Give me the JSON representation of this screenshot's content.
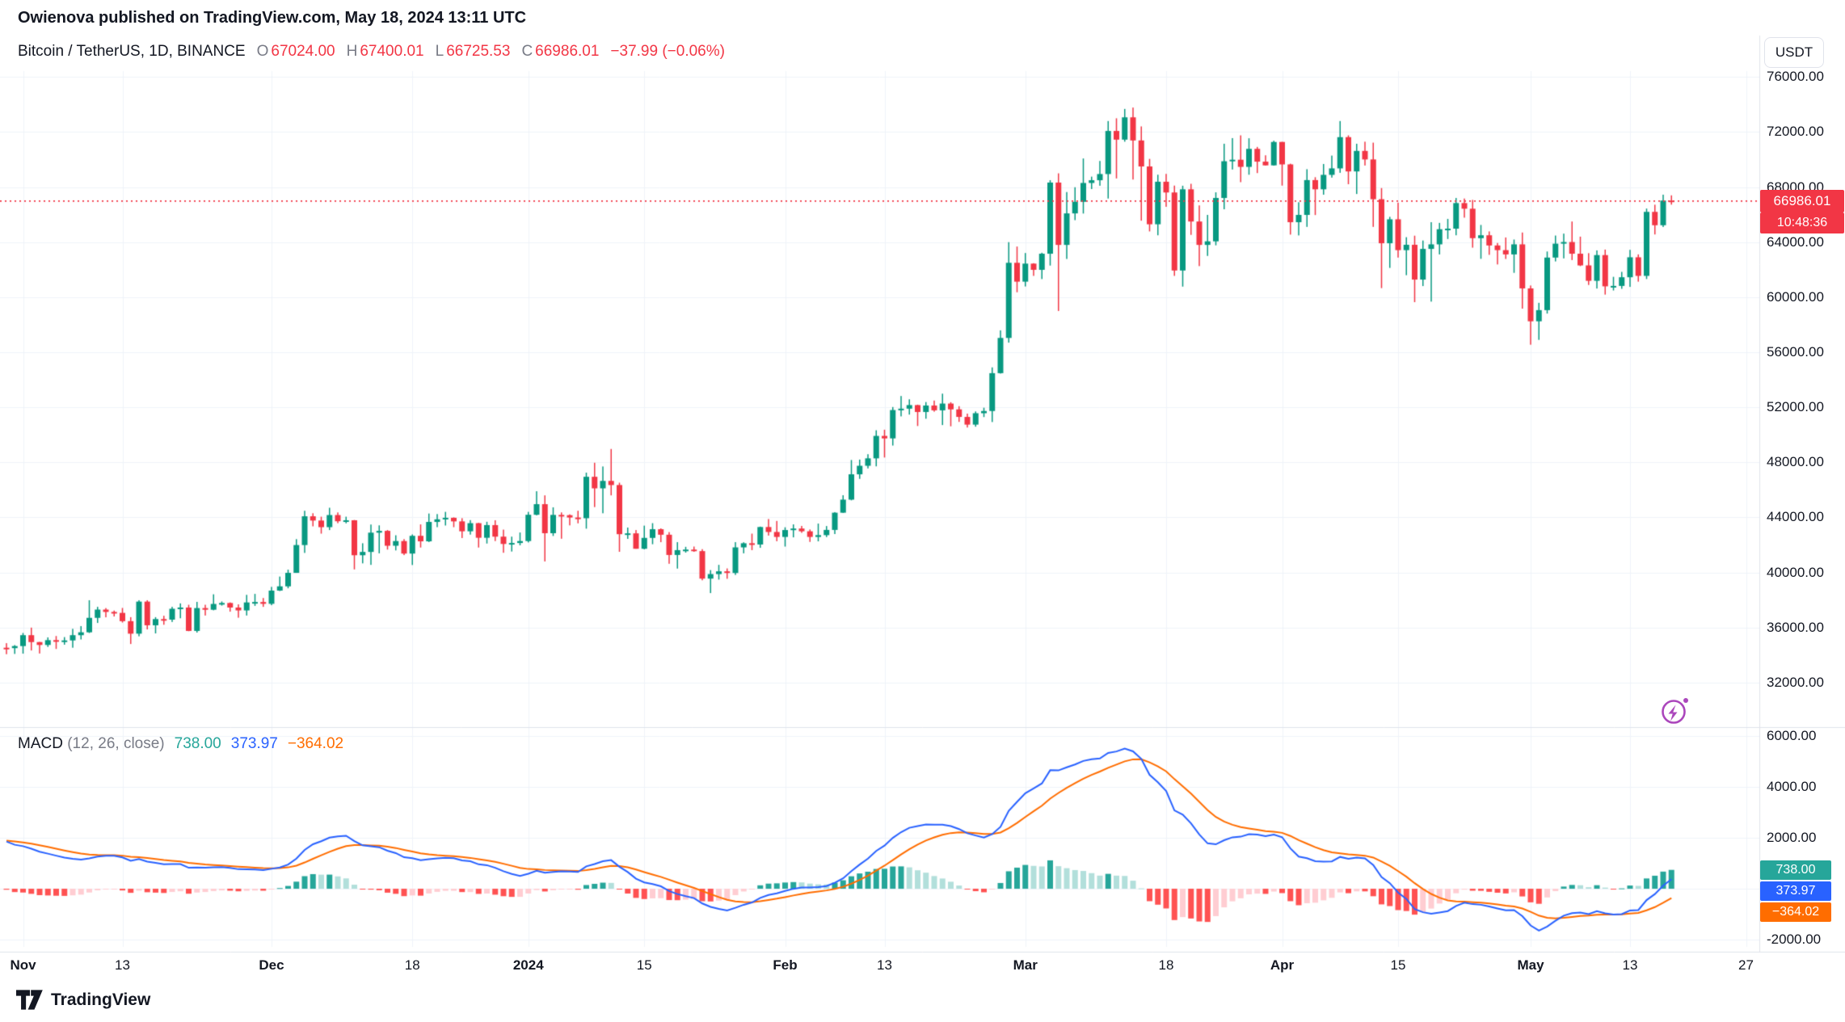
{
  "publish_line": "Owienova published on TradingView.com, May 18, 2024 13:11 UTC",
  "header": {
    "symbol_title": "Bitcoin / TetherUS, 1D, BINANCE",
    "ohlc": {
      "o_label": "O",
      "o": "67024.00",
      "h_label": "H",
      "h": "67400.01",
      "l_label": "L",
      "l": "66725.53",
      "c_label": "C",
      "c": "66986.01",
      "change": "−37.99 (−0.06%)"
    }
  },
  "axis": {
    "currency_button": "USDT",
    "price_label": "66986.01",
    "countdown": "10:48:36"
  },
  "macd_header": {
    "title": "MACD",
    "params": "(12, 26, close)",
    "hist": "738.00",
    "macd": "373.97",
    "signal": "−364.02"
  },
  "footer": {
    "logo_text": "TradingView"
  },
  "colors": {
    "up": "#089981",
    "down": "#F23645",
    "grid": "#F0F3FA",
    "separator": "#E0E3EB",
    "macd_line": "#2962FF",
    "signal_line": "#FF6D00",
    "hist_up_strong": "#26A69A",
    "hist_up_weak": "#B2DFDB",
    "hist_down_strong": "#FF5252",
    "hist_down_weak": "#FFCDD2",
    "price_label_bg": "#F23645",
    "accent_purple": "#AB47BC",
    "text": "#131722",
    "muted": "#787B86"
  },
  "chart_data": {
    "type": "candlestick",
    "symbol": "Bitcoin / TetherUS",
    "interval": "1D",
    "exchange": "BINANCE",
    "legend": "MACD (12, 26, close)",
    "price_pane": {
      "ylim": [
        28760,
        76430
      ],
      "grid": [
        32000,
        76000,
        4000
      ],
      "price_line": 66986.01
    },
    "price_ticks": [
      76000,
      72000,
      68000,
      64000,
      60000,
      56000,
      52000,
      48000,
      44000,
      40000,
      36000,
      32000
    ],
    "macd_pane": {
      "ylim": [
        -2283,
        6252
      ],
      "grid": [
        -2000,
        6000,
        2000
      ],
      "params": {
        "fast": 12,
        "slow": 26,
        "signal": 9
      },
      "last": {
        "hist": 738.0,
        "macd": 373.97,
        "signal": -364.02
      }
    },
    "macd_ticks": [
      6000,
      4000,
      2000,
      -2000
    ],
    "time_ticks": [
      {
        "i": 2,
        "label": "Nov",
        "major": true
      },
      {
        "i": 14,
        "label": "13",
        "major": false
      },
      {
        "i": 32,
        "label": "Dec",
        "major": true
      },
      {
        "i": 49,
        "label": "18",
        "major": false
      },
      {
        "i": 63,
        "label": "2024",
        "major": true
      },
      {
        "i": 77,
        "label": "15",
        "major": false
      },
      {
        "i": 94,
        "label": "Feb",
        "major": true
      },
      {
        "i": 106,
        "label": "13",
        "major": false
      },
      {
        "i": 123,
        "label": "Mar",
        "major": true
      },
      {
        "i": 140,
        "label": "18",
        "major": false
      },
      {
        "i": 154,
        "label": "Apr",
        "major": true
      },
      {
        "i": 168,
        "label": "15",
        "major": false
      },
      {
        "i": 184,
        "label": "May",
        "major": true
      },
      {
        "i": 196,
        "label": "13",
        "major": false
      },
      {
        "i": 210,
        "label": "27",
        "major": false
      }
    ],
    "ohlc": [
      [
        34530,
        34860,
        34060,
        34500
      ],
      [
        34500,
        34720,
        34080,
        34650
      ],
      [
        34650,
        35600,
        34100,
        35440
      ],
      [
        35440,
        35990,
        34330,
        34940
      ],
      [
        34940,
        34950,
        34110,
        34730
      ],
      [
        34730,
        35280,
        34590,
        35080
      ],
      [
        35080,
        35380,
        34440,
        35050
      ],
      [
        35050,
        35300,
        34750,
        35060
      ],
      [
        35060,
        35900,
        34530,
        35440
      ],
      [
        35440,
        36100,
        35130,
        35650
      ],
      [
        35650,
        37980,
        35600,
        36700
      ],
      [
        36700,
        37500,
        36330,
        37300
      ],
      [
        37300,
        37410,
        36740,
        37130
      ],
      [
        37130,
        37230,
        36800,
        37060
      ],
      [
        37060,
        37420,
        36360,
        36460
      ],
      [
        36460,
        36750,
        34800,
        35550
      ],
      [
        35550,
        37980,
        35360,
        37880
      ],
      [
        37880,
        37980,
        35860,
        36160
      ],
      [
        36160,
        36750,
        35570,
        36610
      ],
      [
        36610,
        36850,
        36200,
        36570
      ],
      [
        36570,
        37500,
        36400,
        37360
      ],
      [
        37360,
        37750,
        36670,
        37450
      ],
      [
        37450,
        37650,
        35730,
        35750
      ],
      [
        35750,
        37860,
        35630,
        37410
      ],
      [
        37410,
        37650,
        36870,
        37290
      ],
      [
        37290,
        38410,
        37250,
        37710
      ],
      [
        37710,
        37890,
        37590,
        37780
      ],
      [
        37780,
        37820,
        37150,
        37450
      ],
      [
        37450,
        37680,
        36710,
        37240
      ],
      [
        37240,
        38370,
        36870,
        37820
      ],
      [
        37820,
        38440,
        37570,
        37850
      ],
      [
        37850,
        38140,
        37500,
        37720
      ],
      [
        37720,
        38950,
        37620,
        38680
      ],
      [
        38680,
        39700,
        38650,
        38990
      ],
      [
        38990,
        40200,
        38850,
        39970
      ],
      [
        39970,
        42420,
        39970,
        41990
      ],
      [
        41990,
        44480,
        41420,
        44080
      ],
      [
        44080,
        44300,
        43350,
        43770
      ],
      [
        43770,
        44050,
        42820,
        43290
      ],
      [
        43290,
        44700,
        43080,
        44170
      ],
      [
        44170,
        44360,
        43580,
        43720
      ],
      [
        43720,
        44050,
        43570,
        43790
      ],
      [
        43790,
        43810,
        40220,
        41250
      ],
      [
        41250,
        42120,
        40660,
        41490
      ],
      [
        41490,
        43480,
        40550,
        42890
      ],
      [
        42890,
        43420,
        41390,
        43020
      ],
      [
        43020,
        43080,
        41660,
        41940
      ],
      [
        41940,
        42700,
        41600,
        42280
      ],
      [
        42280,
        42420,
        41260,
        41370
      ],
      [
        41370,
        42760,
        40540,
        42660
      ],
      [
        42660,
        43490,
        41810,
        42260
      ],
      [
        42260,
        44280,
        42210,
        43670
      ],
      [
        43670,
        44240,
        43290,
        43860
      ],
      [
        43860,
        44400,
        43410,
        43970
      ],
      [
        43970,
        44000,
        43290,
        43710
      ],
      [
        43710,
        43940,
        42500,
        42990
      ],
      [
        42990,
        43800,
        42750,
        43580
      ],
      [
        43580,
        43600,
        41810,
        42520
      ],
      [
        42520,
        43680,
        42100,
        43440
      ],
      [
        43440,
        43790,
        42280,
        42600
      ],
      [
        42600,
        43110,
        41430,
        42070
      ],
      [
        42070,
        42600,
        41520,
        42140
      ],
      [
        42140,
        42900,
        41970,
        42280
      ],
      [
        42280,
        44400,
        42180,
        44190
      ],
      [
        44190,
        45900,
        44150,
        44960
      ],
      [
        44960,
        45600,
        40800,
        42850
      ],
      [
        42850,
        44730,
        42650,
        44180
      ],
      [
        44180,
        44360,
        42450,
        44160
      ],
      [
        44160,
        44220,
        43420,
        43990
      ],
      [
        43990,
        44480,
        43570,
        43940
      ],
      [
        43940,
        47250,
        43180,
        46950
      ],
      [
        46950,
        47970,
        44750,
        46110
      ],
      [
        46110,
        47700,
        44300,
        46650
      ],
      [
        46650,
        48970,
        45600,
        46350
      ],
      [
        46350,
        46520,
        41500,
        42780
      ],
      [
        42780,
        43260,
        42440,
        42840
      ],
      [
        42840,
        43080,
        41720,
        41720
      ],
      [
        41720,
        43400,
        41680,
        42510
      ],
      [
        42510,
        43580,
        42050,
        43140
      ],
      [
        43140,
        43200,
        42200,
        42740
      ],
      [
        42740,
        42930,
        40630,
        41270
      ],
      [
        41270,
        42200,
        40280,
        41620
      ],
      [
        41620,
        41860,
        41440,
        41660
      ],
      [
        41660,
        41880,
        41500,
        41550
      ],
      [
        41550,
        41690,
        39430,
        39550
      ],
      [
        39550,
        40170,
        38500,
        39880
      ],
      [
        39880,
        40550,
        39480,
        40080
      ],
      [
        40080,
        40290,
        39540,
        39960
      ],
      [
        39960,
        42200,
        39820,
        41820
      ],
      [
        41820,
        42190,
        41390,
        42120
      ],
      [
        42120,
        42820,
        41620,
        42030
      ],
      [
        42030,
        43330,
        41790,
        43300
      ],
      [
        43300,
        43880,
        42680,
        42940
      ],
      [
        42940,
        43740,
        42270,
        42580
      ],
      [
        42580,
        43280,
        41880,
        43080
      ],
      [
        43080,
        43490,
        42550,
        43190
      ],
      [
        43190,
        43380,
        42880,
        42990
      ],
      [
        42990,
        43120,
        42220,
        42580
      ],
      [
        42580,
        43550,
        42260,
        42710
      ],
      [
        42710,
        43370,
        42570,
        43090
      ],
      [
        43090,
        44380,
        42790,
        44340
      ],
      [
        44340,
        45610,
        44330,
        45290
      ],
      [
        45290,
        48170,
        45240,
        47130
      ],
      [
        47130,
        48200,
        46800,
        47750
      ],
      [
        47750,
        48590,
        47560,
        48290
      ],
      [
        48290,
        50330,
        47710,
        49920
      ],
      [
        49920,
        50370,
        48350,
        49740
      ],
      [
        49740,
        52020,
        49220,
        51800
      ],
      [
        51800,
        52820,
        51340,
        51900
      ],
      [
        51900,
        52580,
        51470,
        52160
      ],
      [
        52160,
        52190,
        50640,
        51660
      ],
      [
        51660,
        52380,
        51170,
        52130
      ],
      [
        52130,
        52490,
        51680,
        51780
      ],
      [
        51780,
        52990,
        50710,
        52270
      ],
      [
        52270,
        52370,
        50620,
        51850
      ],
      [
        51850,
        52080,
        50940,
        51300
      ],
      [
        51300,
        51540,
        50530,
        50740
      ],
      [
        50740,
        51700,
        50590,
        51570
      ],
      [
        51570,
        51970,
        51290,
        51730
      ],
      [
        51730,
        54900,
        50930,
        54480
      ],
      [
        54480,
        57590,
        54450,
        57040
      ],
      [
        57040,
        64000,
        56700,
        62500
      ],
      [
        62500,
        63680,
        60360,
        61130
      ],
      [
        61130,
        63210,
        60780,
        62440
      ],
      [
        62440,
        62470,
        61550,
        61990
      ],
      [
        61990,
        63230,
        61320,
        63160
      ],
      [
        63160,
        68500,
        62300,
        68330
      ],
      [
        68330,
        69000,
        59000,
        63800
      ],
      [
        63800,
        67640,
        62780,
        66090
      ],
      [
        66090,
        67990,
        65600,
        66930
      ],
      [
        66930,
        70080,
        66080,
        68300
      ],
      [
        68300,
        68760,
        67860,
        68500
      ],
      [
        68500,
        69900,
        68100,
        68950
      ],
      [
        68950,
        72800,
        67170,
        72080
      ],
      [
        72080,
        73000,
        68630,
        71450
      ],
      [
        71450,
        73680,
        71300,
        73070
      ],
      [
        73070,
        73780,
        68550,
        71390
      ],
      [
        71390,
        72410,
        65560,
        69500
      ],
      [
        69500,
        70050,
        64780,
        65300
      ],
      [
        65300,
        68900,
        64500,
        68390
      ],
      [
        68390,
        68960,
        66570,
        67610
      ],
      [
        67610,
        68110,
        61550,
        61940
      ],
      [
        61940,
        68100,
        60770,
        67840
      ],
      [
        67840,
        68240,
        64530,
        65500
      ],
      [
        65500,
        66670,
        62260,
        63800
      ],
      [
        63800,
        65980,
        63000,
        64060
      ],
      [
        64060,
        67620,
        63770,
        67210
      ],
      [
        67210,
        71150,
        66390,
        69880
      ],
      [
        69880,
        71560,
        69280,
        69990
      ],
      [
        69990,
        71760,
        68360,
        69470
      ],
      [
        69470,
        71550,
        68900,
        70780
      ],
      [
        70780,
        70920,
        69020,
        69850
      ],
      [
        69850,
        70310,
        69570,
        69580
      ],
      [
        69580,
        71370,
        69560,
        71280
      ],
      [
        71280,
        71290,
        68110,
        69650
      ],
      [
        69650,
        69700,
        64550,
        65450
      ],
      [
        65450,
        66900,
        64490,
        65980
      ],
      [
        65980,
        69300,
        65110,
        68510
      ],
      [
        68510,
        68720,
        65970,
        67840
      ],
      [
        67840,
        69680,
        67450,
        68890
      ],
      [
        68890,
        70290,
        68690,
        69360
      ],
      [
        69360,
        72800,
        69040,
        71630
      ],
      [
        71630,
        71760,
        68210,
        69140
      ],
      [
        69140,
        71150,
        67500,
        70630
      ],
      [
        70630,
        71300,
        69570,
        70010
      ],
      [
        70010,
        71230,
        65110,
        67120
      ],
      [
        67120,
        67930,
        60660,
        63920
      ],
      [
        63920,
        65840,
        62130,
        65660
      ],
      [
        65660,
        66870,
        62880,
        63420
      ],
      [
        63420,
        64360,
        61600,
        63810
      ],
      [
        63810,
        64470,
        59640,
        61280
      ],
      [
        61280,
        64120,
        60810,
        63510
      ],
      [
        63510,
        65450,
        59680,
        63840
      ],
      [
        63840,
        65400,
        63110,
        64940
      ],
      [
        64940,
        65690,
        64230,
        64980
      ],
      [
        64980,
        67210,
        64500,
        66840
      ],
      [
        66840,
        67170,
        65780,
        66430
      ],
      [
        66430,
        67070,
        63600,
        64290
      ],
      [
        64290,
        65250,
        62790,
        64500
      ],
      [
        64500,
        64780,
        63080,
        63760
      ],
      [
        63760,
        63940,
        62380,
        63420
      ],
      [
        63420,
        64340,
        62780,
        63110
      ],
      [
        63110,
        64190,
        61770,
        63840
      ],
      [
        63840,
        64700,
        59170,
        60640
      ],
      [
        60640,
        60850,
        56550,
        58250
      ],
      [
        58250,
        59590,
        56900,
        59060
      ],
      [
        59060,
        63320,
        58810,
        62880
      ],
      [
        62880,
        64480,
        62600,
        63890
      ],
      [
        63890,
        64620,
        62820,
        64010
      ],
      [
        64010,
        65500,
        62700,
        63160
      ],
      [
        63160,
        64400,
        62260,
        62310
      ],
      [
        62310,
        63200,
        60890,
        61190
      ],
      [
        61190,
        63400,
        60630,
        63060
      ],
      [
        63060,
        63460,
        60190,
        60790
      ],
      [
        60790,
        61480,
        60490,
        60820
      ],
      [
        60820,
        61840,
        60610,
        61450
      ],
      [
        61450,
        63440,
        60750,
        62900
      ],
      [
        62900,
        63110,
        61130,
        61550
      ],
      [
        61550,
        66440,
        61320,
        66200
      ],
      [
        66200,
        66720,
        64560,
        65230
      ],
      [
        65230,
        67450,
        65100,
        67024
      ],
      [
        67024,
        67400.01,
        66725.53,
        66986.01
      ]
    ]
  }
}
